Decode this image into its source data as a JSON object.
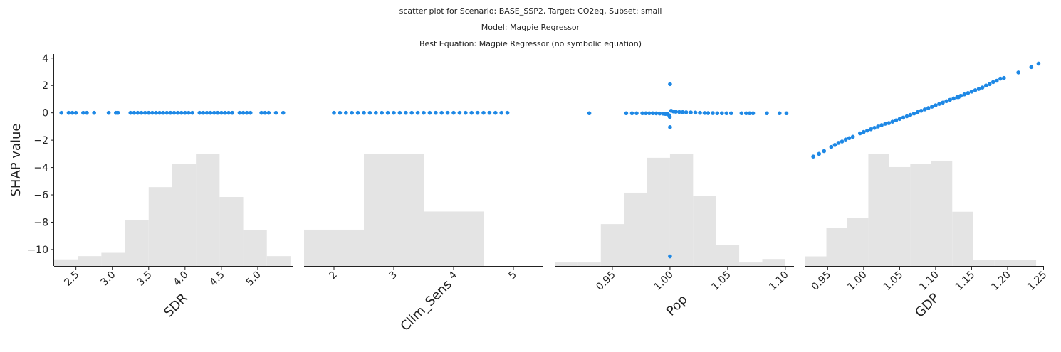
{
  "titles": {
    "line1": "scatter plot for Scenario: BASE_SSP2, Target: CO2eq, Subset: small",
    "line2": "Model: Magpie Regressor",
    "line3": "Best Equation: Magpie Regressor (no symbolic equation)"
  },
  "colors": {
    "points": "#1e88e5",
    "hist": "#e4e4e4",
    "axis": "#222222"
  },
  "chart_data": [
    {
      "type": "scatter",
      "xlabel": "SDR",
      "ylabel": "SHAP value",
      "ylim": [
        -11.2,
        4.3
      ],
      "yticks": [
        4,
        2,
        0,
        -2,
        -4,
        -6,
        -8,
        -10
      ],
      "ytick_labels": [
        "4",
        "2",
        "0",
        "−2",
        "−4",
        "−6",
        "−8",
        "−10"
      ],
      "xlim": [
        2.2,
        5.48
      ],
      "xticks": [
        2.5,
        3.0,
        3.5,
        4.0,
        4.5,
        5.0
      ],
      "xtick_labels": [
        "2.5",
        "3.0",
        "3.5",
        "4.0",
        "4.5",
        "5.0"
      ],
      "points": [
        [
          2.3,
          0
        ],
        [
          2.4,
          0
        ],
        [
          2.45,
          0
        ],
        [
          2.5,
          0
        ],
        [
          2.6,
          0
        ],
        [
          2.65,
          0
        ],
        [
          2.75,
          0
        ],
        [
          2.95,
          0
        ],
        [
          3.05,
          0
        ],
        [
          3.08,
          0
        ],
        [
          3.25,
          0
        ],
        [
          3.3,
          0
        ],
        [
          3.35,
          0
        ],
        [
          3.4,
          0
        ],
        [
          3.45,
          0
        ],
        [
          3.5,
          0
        ],
        [
          3.55,
          0
        ],
        [
          3.6,
          0
        ],
        [
          3.65,
          0
        ],
        [
          3.7,
          0
        ],
        [
          3.75,
          0
        ],
        [
          3.8,
          0
        ],
        [
          3.85,
          0
        ],
        [
          3.9,
          0
        ],
        [
          3.95,
          0
        ],
        [
          4.0,
          0
        ],
        [
          4.05,
          0
        ],
        [
          4.1,
          0
        ],
        [
          4.2,
          0
        ],
        [
          4.25,
          0
        ],
        [
          4.3,
          0
        ],
        [
          4.35,
          0
        ],
        [
          4.4,
          0
        ],
        [
          4.45,
          0
        ],
        [
          4.5,
          0
        ],
        [
          4.55,
          0
        ],
        [
          4.6,
          0
        ],
        [
          4.65,
          0
        ],
        [
          4.75,
          0
        ],
        [
          4.8,
          0
        ],
        [
          4.85,
          0
        ],
        [
          4.9,
          0
        ],
        [
          5.05,
          0
        ],
        [
          5.1,
          0
        ],
        [
          5.15,
          0
        ],
        [
          5.25,
          0
        ],
        [
          5.35,
          0
        ]
      ],
      "hist": {
        "edges": [
          2.2,
          2.525,
          2.85,
          3.175,
          3.5,
          3.825,
          4.15,
          4.475,
          4.8,
          5.125,
          5.45
        ],
        "counts": [
          2,
          3,
          4,
          14,
          24,
          31,
          34,
          21,
          11,
          3
        ]
      }
    },
    {
      "type": "scatter",
      "xlabel": "Clim_Sens",
      "ylim": [
        -11.2,
        4.3
      ],
      "xlim": [
        1.5,
        5.5
      ],
      "xticks": [
        2,
        3,
        4,
        5
      ],
      "xtick_labels": [
        "2",
        "3",
        "4",
        "5"
      ],
      "points": [
        [
          2.0,
          0
        ],
        [
          2.1,
          0
        ],
        [
          2.2,
          0
        ],
        [
          2.3,
          0
        ],
        [
          2.4,
          0
        ],
        [
          2.5,
          0
        ],
        [
          2.6,
          0
        ],
        [
          2.7,
          0
        ],
        [
          2.8,
          0
        ],
        [
          2.9,
          0
        ],
        [
          3.0,
          0
        ],
        [
          3.1,
          0
        ],
        [
          3.2,
          0
        ],
        [
          3.3,
          0
        ],
        [
          3.4,
          0
        ],
        [
          3.5,
          0
        ],
        [
          3.6,
          0
        ],
        [
          3.7,
          0
        ],
        [
          3.8,
          0
        ],
        [
          3.9,
          0
        ],
        [
          4.0,
          0
        ],
        [
          4.1,
          0
        ],
        [
          4.2,
          0
        ],
        [
          4.3,
          0
        ],
        [
          4.4,
          0
        ],
        [
          4.5,
          0
        ],
        [
          4.6,
          0
        ],
        [
          4.7,
          0
        ],
        [
          4.8,
          0
        ],
        [
          4.9,
          0
        ]
      ],
      "hist": {
        "edges": [
          1.5,
          2.5,
          3.5,
          4.5,
          5.5
        ],
        "counts": [
          26,
          80,
          39,
          0
        ]
      }
    },
    {
      "type": "scatter",
      "xlabel": "Pop",
      "ylim": [
        -11.2,
        4.3
      ],
      "xlim": [
        0.9,
        1.1075
      ],
      "xticks": [
        0.95,
        1.0,
        1.05,
        1.1
      ],
      "xtick_labels": [
        "0.95",
        "1.00",
        "1.05",
        "1.10"
      ],
      "points": [
        [
          0.93,
          -0.03
        ],
        [
          0.962,
          -0.03
        ],
        [
          0.967,
          -0.03
        ],
        [
          0.971,
          -0.03
        ],
        [
          0.976,
          -0.03
        ],
        [
          0.979,
          -0.03
        ],
        [
          0.982,
          -0.03
        ],
        [
          0.985,
          -0.03
        ],
        [
          0.988,
          -0.04
        ],
        [
          0.991,
          -0.05
        ],
        [
          0.994,
          -0.06
        ],
        [
          0.996,
          -0.08
        ],
        [
          0.998,
          -0.1
        ],
        [
          0.9993,
          -0.18
        ],
        [
          0.9998,
          -0.3
        ],
        [
          1.0,
          2.1
        ],
        [
          1.0,
          -1.05
        ],
        [
          1.0,
          -10.5
        ],
        [
          1.001,
          0.15
        ],
        [
          1.003,
          0.1
        ],
        [
          1.005,
          0.08
        ],
        [
          1.008,
          0.06
        ],
        [
          1.011,
          0.05
        ],
        [
          1.014,
          0.04
        ],
        [
          1.018,
          0.03
        ],
        [
          1.022,
          0.02
        ],
        [
          1.026,
          0.0
        ],
        [
          1.03,
          -0.01
        ],
        [
          1.033,
          -0.02
        ],
        [
          1.037,
          -0.02
        ],
        [
          1.041,
          -0.03
        ],
        [
          1.045,
          -0.03
        ],
        [
          1.049,
          -0.03
        ],
        [
          1.053,
          -0.03
        ],
        [
          1.062,
          -0.03
        ],
        [
          1.066,
          -0.03
        ],
        [
          1.069,
          -0.03
        ],
        [
          1.072,
          -0.03
        ],
        [
          1.084,
          -0.03
        ],
        [
          1.095,
          -0.03
        ],
        [
          1.101,
          -0.03
        ]
      ],
      "hist": {
        "edges": [
          0.9,
          0.92,
          0.94,
          0.96,
          0.98,
          1.0,
          1.02,
          1.04,
          1.06,
          1.08,
          1.1
        ],
        "counts": [
          1,
          1,
          12,
          21,
          31,
          32,
          20,
          6,
          1,
          2
        ]
      }
    },
    {
      "type": "scatter",
      "xlabel": "GDP",
      "ylim": [
        -11.2,
        4.3
      ],
      "xlim": [
        0.919,
        1.2505
      ],
      "xticks": [
        0.95,
        1.0,
        1.05,
        1.1,
        1.15,
        1.2,
        1.25
      ],
      "xtick_labels": [
        "0.95",
        "1.00",
        "1.05",
        "1.10",
        "1.15",
        "1.20",
        "1.25"
      ],
      "points": [
        [
          0.93,
          -3.2
        ],
        [
          0.938,
          -3.0
        ],
        [
          0.945,
          -2.8
        ],
        [
          0.955,
          -2.5
        ],
        [
          0.96,
          -2.35
        ],
        [
          0.965,
          -2.2
        ],
        [
          0.97,
          -2.1
        ],
        [
          0.975,
          -1.95
        ],
        [
          0.98,
          -1.85
        ],
        [
          0.985,
          -1.75
        ],
        [
          0.995,
          -1.5
        ],
        [
          1.0,
          -1.4
        ],
        [
          1.005,
          -1.3
        ],
        [
          1.01,
          -1.2
        ],
        [
          1.015,
          -1.1
        ],
        [
          1.02,
          -1.0
        ],
        [
          1.025,
          -0.9
        ],
        [
          1.03,
          -0.8
        ],
        [
          1.035,
          -0.75
        ],
        [
          1.04,
          -0.65
        ],
        [
          1.045,
          -0.55
        ],
        [
          1.05,
          -0.45
        ],
        [
          1.055,
          -0.35
        ],
        [
          1.06,
          -0.25
        ],
        [
          1.065,
          -0.15
        ],
        [
          1.07,
          -0.05
        ],
        [
          1.075,
          0.05
        ],
        [
          1.08,
          0.15
        ],
        [
          1.085,
          0.25
        ],
        [
          1.09,
          0.35
        ],
        [
          1.095,
          0.45
        ],
        [
          1.1,
          0.55
        ],
        [
          1.105,
          0.65
        ],
        [
          1.11,
          0.75
        ],
        [
          1.115,
          0.85
        ],
        [
          1.12,
          0.95
        ],
        [
          1.125,
          1.05
        ],
        [
          1.13,
          1.15
        ],
        [
          1.135,
          1.25
        ],
        [
          1.14,
          1.35
        ],
        [
          1.145,
          1.45
        ],
        [
          1.15,
          1.55
        ],
        [
          1.155,
          1.65
        ],
        [
          1.16,
          1.75
        ],
        [
          1.165,
          1.85
        ],
        [
          1.17,
          2.0
        ],
        [
          1.175,
          2.1
        ],
        [
          1.18,
          2.25
        ],
        [
          1.185,
          2.35
        ],
        [
          1.19,
          2.5
        ],
        [
          1.195,
          2.55
        ],
        [
          1.215,
          2.95
        ],
        [
          1.233,
          3.35
        ],
        [
          1.243,
          3.6
        ],
        [
          1.132,
          1.15
        ]
      ],
      "hist": {
        "edges": [
          0.919,
          0.9482,
          0.9773,
          1.0065,
          1.0356,
          1.0648,
          1.094,
          1.1231,
          1.1523,
          1.1814,
          1.2106,
          1.2397,
          1.269
        ],
        "counts": [
          3,
          12,
          15,
          35,
          31,
          32,
          33,
          17,
          2,
          2,
          2,
          0
        ]
      }
    }
  ]
}
